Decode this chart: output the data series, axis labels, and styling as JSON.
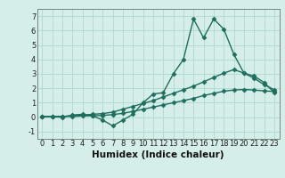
{
  "xlabel": "Humidex (Indice chaleur)",
  "bg_color": "#d6eeea",
  "grid_color": "#b0d8d0",
  "line_color": "#1e6e5e",
  "xlim": [
    -0.5,
    23.5
  ],
  "ylim": [
    -1.5,
    7.5
  ],
  "xticks": [
    0,
    1,
    2,
    3,
    4,
    5,
    6,
    7,
    8,
    9,
    10,
    11,
    12,
    13,
    14,
    15,
    16,
    17,
    18,
    19,
    20,
    21,
    22,
    23
  ],
  "yticks": [
    -1,
    0,
    1,
    2,
    3,
    4,
    5,
    6,
    7
  ],
  "series1_x": [
    0,
    1,
    2,
    3,
    4,
    5,
    6,
    7,
    8,
    9,
    10,
    11,
    12,
    13,
    14,
    15,
    16,
    17,
    18,
    19,
    20,
    21,
    22,
    23
  ],
  "series1_y": [
    0.05,
    0.05,
    0.0,
    0.15,
    0.2,
    0.1,
    -0.2,
    -0.6,
    -0.2,
    0.2,
    1.0,
    1.6,
    1.7,
    3.0,
    4.0,
    6.8,
    5.5,
    6.8,
    6.1,
    4.35,
    3.05,
    2.85,
    2.4,
    1.7
  ],
  "series2_x": [
    0,
    1,
    2,
    3,
    4,
    5,
    6,
    7,
    8,
    9,
    10,
    11,
    12,
    13,
    14,
    15,
    16,
    17,
    18,
    19,
    20,
    21,
    22,
    23
  ],
  "series2_y": [
    0.05,
    0.05,
    0.05,
    0.1,
    0.15,
    0.2,
    0.25,
    0.35,
    0.55,
    0.75,
    0.95,
    1.15,
    1.4,
    1.65,
    1.9,
    2.15,
    2.45,
    2.75,
    3.05,
    3.3,
    3.05,
    2.7,
    2.25,
    1.9
  ],
  "series3_x": [
    0,
    1,
    2,
    3,
    4,
    5,
    6,
    7,
    8,
    9,
    10,
    11,
    12,
    13,
    14,
    15,
    16,
    17,
    18,
    19,
    20,
    21,
    22,
    23
  ],
  "series3_y": [
    0.05,
    0.05,
    0.05,
    0.05,
    0.08,
    0.1,
    0.12,
    0.18,
    0.27,
    0.4,
    0.55,
    0.7,
    0.85,
    1.0,
    1.15,
    1.3,
    1.5,
    1.65,
    1.8,
    1.88,
    1.92,
    1.88,
    1.82,
    1.78
  ],
  "marker": "D",
  "marker_size": 2.5,
  "line_width": 1.0,
  "xlabel_fontsize": 7.5,
  "tick_fontsize": 6.0
}
